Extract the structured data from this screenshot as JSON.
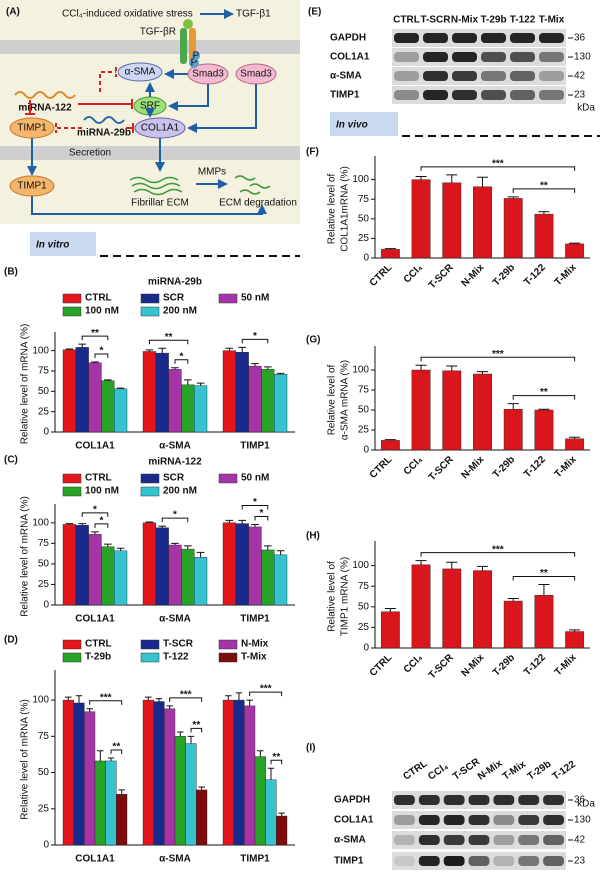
{
  "diagram": {
    "label": "(A)",
    "stress": "CCl₄-induced oxidative stress",
    "tgf": "TGF-β1",
    "receptor": "TGF-βR",
    "phospho": "P",
    "asma": "α-SMA",
    "smad3_p": "Smad3",
    "smad3": "Smad3",
    "srf": "SRF",
    "mir122": "miRNA-122",
    "timp1_in": "TIMP1",
    "mir29b": "miRNA-29b",
    "col1a1": "COL1A1",
    "secretion": "Secretion",
    "timp1_out": "TIMP1",
    "mmps": "MMPs",
    "ecm": "Fibrillar ECM",
    "degradation": "ECM degradation"
  },
  "sections": {
    "in_vitro": "In vitro",
    "in_vivo": "In vivo"
  },
  "blots": [
    {
      "label": "(E)",
      "lanes": [
        "CTRL",
        "T-SCR",
        "N-Mix",
        "T-29b",
        "T-122",
        "T-Mix"
      ],
      "rows": [
        "GAPDH",
        "COL1A1",
        "α-SMA",
        "TIMP1"
      ],
      "sizes": [
        36,
        130,
        42,
        23
      ],
      "unit": "kDa"
    },
    {
      "label": "(I)",
      "lanes": [
        "CTRL",
        "CCl₄",
        "T-SCR",
        "N-Mix",
        "T-Mix",
        "T-29b",
        "T-122"
      ],
      "rows": [
        "GAPDH",
        "COL1A1",
        "α-SMA",
        "TIMP1"
      ],
      "sizes": [
        36,
        130,
        42,
        23
      ],
      "unit": "kDa"
    }
  ],
  "chart_data": [
    {
      "type": "bar",
      "panel_label": "(B)",
      "title": "miRNA-29b",
      "ylabel": [
        "Relative level of mRNA (%)"
      ],
      "categories": [
        "COL1A1",
        "α-SMA",
        "TIMP1"
      ],
      "series": [
        {
          "name": "CTRL",
          "color": "#e3161b",
          "values": [
            101,
            99,
            100
          ],
          "errors": [
            1,
            2,
            3
          ]
        },
        {
          "name": "SCR",
          "color": "#1a2a8c",
          "values": [
            104,
            97,
            98
          ],
          "errors": [
            4,
            6,
            6
          ]
        },
        {
          "name": "50 nM",
          "color": "#a534a8",
          "values": [
            85,
            77,
            81
          ],
          "errors": [
            1,
            2,
            3
          ]
        },
        {
          "name": "100 nM",
          "color": "#27a327",
          "values": [
            63,
            58,
            77
          ],
          "errors": [
            1,
            6,
            3
          ]
        },
        {
          "name": "200 nM",
          "color": "#35c4cf",
          "values": [
            53,
            57,
            71
          ],
          "errors": [
            1,
            3,
            1
          ]
        }
      ],
      "ylim": [
        0,
        118
      ],
      "yticks": [
        0,
        25,
        50,
        75,
        100
      ],
      "annotations": [
        {
          "text": "*",
          "category": "COL1A1",
          "series": [
            "50 nM",
            "100 nM"
          ]
        },
        {
          "text": "**",
          "category": "COL1A1",
          "series": [
            "SCR",
            "100 nM"
          ]
        },
        {
          "text": "*",
          "category": "α-SMA",
          "series": [
            "50 nM",
            "100 nM"
          ]
        },
        {
          "text": "**",
          "category": "α-SMA",
          "series": [
            "CTRL",
            "100 nM"
          ]
        },
        {
          "text": "*",
          "category": "TIMP1",
          "series": [
            "SCR",
            "100 nM"
          ]
        }
      ]
    },
    {
      "type": "bar",
      "panel_label": "(C)",
      "title": "miRNA-122",
      "ylabel": [
        "Relative level of mRNA (%)"
      ],
      "categories": [
        "COL1A1",
        "α-SMA",
        "TIMP1"
      ],
      "series": [
        {
          "name": "CTRL",
          "color": "#e3161b",
          "values": [
            98,
            100,
            100
          ],
          "errors": [
            1,
            1,
            3
          ]
        },
        {
          "name": "SCR",
          "color": "#1a2a8c",
          "values": [
            97,
            94,
            99
          ],
          "errors": [
            2,
            2,
            4
          ]
        },
        {
          "name": "50 nM",
          "color": "#a534a8",
          "values": [
            86,
            73,
            95
          ],
          "errors": [
            3,
            2,
            3
          ]
        },
        {
          "name": "100 nM",
          "color": "#27a327",
          "values": [
            71,
            68,
            67
          ],
          "errors": [
            3,
            4,
            5
          ]
        },
        {
          "name": "200 nM",
          "color": "#35c4cf",
          "values": [
            66,
            58,
            61
          ],
          "errors": [
            3,
            6,
            5
          ]
        }
      ],
      "ylim": [
        0,
        118
      ],
      "yticks": [
        0,
        25,
        50,
        75,
        100
      ],
      "annotations": [
        {
          "text": "*",
          "category": "COL1A1",
          "series": [
            "50 nM",
            "100 nM"
          ]
        },
        {
          "text": "*",
          "category": "COL1A1",
          "series": [
            "SCR",
            "100 nM"
          ]
        },
        {
          "text": "*",
          "category": "α-SMA",
          "series": [
            "SCR",
            "100 nM"
          ]
        },
        {
          "text": "*",
          "category": "TIMP1",
          "series": [
            "50 nM",
            "100 nM"
          ]
        },
        {
          "text": "*",
          "category": "TIMP1",
          "series": [
            "SCR",
            "100 nM"
          ]
        }
      ]
    },
    {
      "type": "bar",
      "panel_label": "(D)",
      "ylabel": [
        "Relative level of mRNA (%)"
      ],
      "categories": [
        "COL1A1",
        "α-SMA",
        "TIMP1"
      ],
      "series": [
        {
          "name": "CTRL",
          "color": "#e3161b",
          "values": [
            100,
            100,
            100
          ],
          "errors": [
            2,
            2,
            3
          ]
        },
        {
          "name": "T-SCR",
          "color": "#1a2a8c",
          "values": [
            98,
            99,
            100
          ],
          "errors": [
            5,
            2,
            5
          ]
        },
        {
          "name": "N-Mix",
          "color": "#a534a8",
          "values": [
            92,
            94,
            96
          ],
          "errors": [
            2,
            2,
            4
          ]
        },
        {
          "name": "T-29b",
          "color": "#27a327",
          "values": [
            58,
            75,
            61
          ],
          "errors": [
            7,
            3,
            4
          ]
        },
        {
          "name": "T-122",
          "color": "#35c4cf",
          "values": [
            58,
            70,
            45
          ],
          "errors": [
            2,
            5,
            8
          ]
        },
        {
          "name": "T-Mix",
          "color": "#7b0d0d",
          "values": [
            35,
            38,
            20
          ],
          "errors": [
            3,
            2,
            2
          ]
        }
      ],
      "ylim": [
        0,
        118
      ],
      "yticks": [
        0,
        25,
        50,
        75,
        100
      ],
      "annotations": [
        {
          "text": "**",
          "category": "COL1A1",
          "series": [
            "T-122",
            "T-Mix"
          ]
        },
        {
          "text": "***",
          "category": "COL1A1",
          "series": [
            "N-Mix",
            "T-Mix"
          ]
        },
        {
          "text": "**",
          "category": "α-SMA",
          "series": [
            "T-122",
            "T-Mix"
          ]
        },
        {
          "text": "***",
          "category": "α-SMA",
          "series": [
            "N-Mix",
            "T-Mix"
          ]
        },
        {
          "text": "**",
          "category": "TIMP1",
          "series": [
            "T-122",
            "T-Mix"
          ]
        },
        {
          "text": "***",
          "category": "TIMP1",
          "series": [
            "N-Mix",
            "T-Mix"
          ]
        }
      ]
    },
    {
      "type": "bar",
      "panel_label": "(F)",
      "ylabel": [
        "Relative level of",
        "COL1A1mRNA (%)"
      ],
      "categories": [
        "CTRL",
        "CCl₄",
        "T-SCR",
        "N-Mix",
        "T-29b",
        "T-122",
        "T-Mix"
      ],
      "values": [
        11,
        100,
        96,
        91,
        76,
        56,
        18
      ],
      "errors": [
        1,
        4,
        10,
        12,
        2,
        3,
        1
      ],
      "color": "#d8161b",
      "ylim": [
        0,
        125
      ],
      "yticks": [
        0,
        25,
        50,
        75,
        100
      ],
      "annotations": [
        {
          "text": "**",
          "categories": [
            "T-29b",
            "T-Mix"
          ]
        },
        {
          "text": "***",
          "categories": [
            "CCl₄",
            "T-Mix"
          ]
        }
      ]
    },
    {
      "type": "bar",
      "panel_label": "(G)",
      "ylabel": [
        "Relative level of",
        "α-SMA mRNA (%)"
      ],
      "categories": [
        "CTRL",
        "CCl₄",
        "T-SCR",
        "N-Mix",
        "T-29b",
        "T-122",
        "T-Mix"
      ],
      "values": [
        12,
        100,
        99,
        95,
        51,
        50,
        14
      ],
      "errors": [
        1,
        6,
        6,
        3,
        7,
        1,
        2
      ],
      "color": "#d8161b",
      "ylim": [
        0,
        125
      ],
      "yticks": [
        0,
        25,
        50,
        75,
        100
      ],
      "annotations": [
        {
          "text": "**",
          "categories": [
            "T-29b",
            "T-Mix"
          ]
        },
        {
          "text": "***",
          "categories": [
            "CCl₄",
            "T-Mix"
          ]
        }
      ]
    },
    {
      "type": "bar",
      "panel_label": "(H)",
      "ylabel": [
        "Relative level of",
        "TIMP1 mRNA (%)"
      ],
      "categories": [
        "CTRL",
        "CCl₄",
        "T-SCR",
        "N-Mix",
        "T-29b",
        "T-122",
        "T-Mix"
      ],
      "values": [
        44,
        101,
        96,
        94,
        57,
        64,
        20
      ],
      "errors": [
        4,
        5,
        8,
        5,
        3,
        13,
        2
      ],
      "color": "#d8161b",
      "ylim": [
        0,
        125
      ],
      "yticks": [
        0,
        25,
        50,
        75,
        100
      ],
      "annotations": [
        {
          "text": "**",
          "categories": [
            "T-29b",
            "T-Mix"
          ]
        },
        {
          "text": "***",
          "categories": [
            "CCl₄",
            "T-Mix"
          ]
        }
      ]
    }
  ]
}
